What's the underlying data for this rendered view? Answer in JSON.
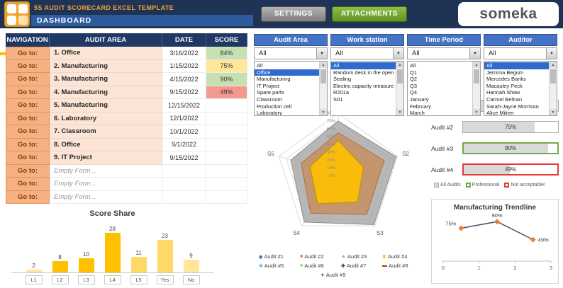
{
  "header": {
    "title": "5S AUDIT SCORECARD EXCEL TEMPLATE",
    "subtitle": "DASHBOARD",
    "buttons": {
      "settings": "SETTINGS",
      "attachments": "ATTACHMENTS"
    },
    "logo_text": "someka"
  },
  "nav_table": {
    "headers": [
      "NAVIGATION",
      "AUDIT AREA",
      "DATE",
      "SCORE"
    ],
    "goto_label": "Go to:",
    "rows": [
      {
        "area": "1. Office",
        "date": "3/16/2022",
        "score": "84%",
        "score_style": "green",
        "empty": false
      },
      {
        "area": "2. Manufacturing",
        "date": "1/15/2022",
        "score": "75%",
        "score_style": "yellow",
        "empty": false
      },
      {
        "area": "3. Manufacturing",
        "date": "4/15/2022",
        "score": "90%",
        "score_style": "green",
        "empty": false
      },
      {
        "area": "4. Manufacturing",
        "date": "9/15/2022",
        "score": "49%",
        "score_style": "red",
        "empty": false
      },
      {
        "area": "5. Manufacturing",
        "date": "12/15/2022",
        "score": "",
        "score_style": "",
        "empty": false
      },
      {
        "area": "6. Laboratory",
        "date": "12/1/2022",
        "score": "",
        "score_style": "",
        "empty": false
      },
      {
        "area": "7. Classroom",
        "date": "10/1/2022",
        "score": "",
        "score_style": "",
        "empty": false
      },
      {
        "area": "8. Office",
        "date": "9/1/2022",
        "score": "",
        "score_style": "",
        "empty": false
      },
      {
        "area": "9. IT Project",
        "date": "9/15/2022",
        "score": "",
        "score_style": "",
        "empty": false
      },
      {
        "area": "Empty Form...",
        "date": "",
        "score": "",
        "score_style": "",
        "empty": true
      },
      {
        "area": "Empty Form...",
        "date": "",
        "score": "",
        "score_style": "",
        "empty": true
      },
      {
        "area": "Empty Form...",
        "date": "",
        "score": "",
        "score_style": "",
        "empty": true
      }
    ]
  },
  "filters": [
    {
      "title": "Audit Area",
      "value": "All",
      "selected_index": 1,
      "items": [
        "All",
        "Office",
        "Manufacturing",
        "IT Project",
        "Spare parts",
        "Classroom",
        "Production cell",
        "Laboratory"
      ]
    },
    {
      "title": "Work station",
      "value": "All",
      "selected_index": 0,
      "items": [
        "All",
        "Random desk in the open space",
        "Sealing",
        "Electric capacity measure station",
        "R201a",
        "S01"
      ]
    },
    {
      "title": "Time Period",
      "value": "All",
      "selected_index": -1,
      "items": [
        "All",
        "Q1",
        "Q2",
        "Q3",
        "Q4",
        "January",
        "February",
        "March"
      ]
    },
    {
      "title": "Auditor",
      "value": "All",
      "selected_index": 0,
      "items": [
        "All",
        "Jemima Begum",
        "Mercedes Banks",
        "Macauley Peck",
        "Hannah Shaw",
        "Carmel Beltran",
        "Sarah-Jayne Morrison",
        "Alice Milner"
      ]
    }
  ],
  "chart_data": [
    {
      "type": "bar",
      "title": "Score Share",
      "categories": [
        "L1",
        "L2",
        "L3",
        "L4",
        "L5",
        "Yes",
        "No"
      ],
      "values": [
        2,
        8,
        10,
        28,
        11,
        23,
        9
      ],
      "bar_colors": [
        "#FFE699",
        "#FFC000",
        "#FFC000",
        "#FFC000",
        "#FFD966",
        "#FFD966",
        "#FFE699"
      ],
      "ylim": [
        0,
        30
      ]
    },
    {
      "type": "radar",
      "axes": [
        "S1",
        "S2",
        "S3",
        "S4",
        "S5"
      ],
      "ticks": [
        "0%",
        "10%",
        "20%",
        "30%",
        "40%",
        "50%",
        "60%",
        "70%",
        "80%"
      ],
      "max": 80,
      "series": [
        {
          "name": "outer-gray-band",
          "values": [
            70,
            78,
            78,
            74,
            64
          ],
          "fill": "rgba(165,165,165,0.80)",
          "stroke": "#8C8C8C"
        },
        {
          "name": "middle-tan-band",
          "values": [
            55,
            62,
            62,
            60,
            50
          ],
          "fill": "rgba(197,144,98,0.85)",
          "stroke": "#B07040"
        },
        {
          "name": "inner-gold-band",
          "values": [
            45,
            34,
            42,
            45,
            38
          ],
          "fill": "rgba(255,192,0,0.90)",
          "stroke": "#BF9000"
        }
      ],
      "legend": [
        "Audit #1",
        "Audit #2",
        "Audit #3",
        "Audit #4",
        "Audit #5",
        "Audit #6",
        "Audit #7",
        "Audit #8",
        "Audit #9"
      ],
      "legend_colors": [
        "#4472C4",
        "#ED7D31",
        "#A5A5A5",
        "#FFC000",
        "#5B9BD5",
        "#70AD47",
        "#264478",
        "#9E480E",
        "#636363"
      ],
      "legend_markers": [
        "◆",
        "■",
        "▲",
        "✖",
        "✳",
        "●",
        "✚",
        "▬",
        "✦"
      ]
    },
    {
      "type": "progress",
      "items": [
        {
          "label": "Audit #1",
          "value": 84,
          "display": "84%",
          "style": "default"
        },
        {
          "label": "Audit #2",
          "value": 75,
          "display": "75%",
          "style": "default"
        },
        {
          "label": "Audit #3",
          "value": 90,
          "display": "90%",
          "style": "professional"
        },
        {
          "label": "Audit #4",
          "value": 49,
          "display": "49%",
          "style": "not-acceptable"
        }
      ],
      "legend": [
        {
          "label": "All Audits",
          "style": "default"
        },
        {
          "label": "Professional",
          "style": "professional"
        },
        {
          "label": "Not acceptable!",
          "style": "not-acceptable"
        }
      ]
    },
    {
      "type": "line",
      "title": "Manufacturing Trendline",
      "x": [
        0.5,
        1.5,
        2.5
      ],
      "values": [
        75,
        90,
        49
      ],
      "point_labels": [
        "75%",
        "90%",
        "49%"
      ],
      "x_ticks": [
        "0",
        "1",
        "2",
        "3"
      ],
      "ylim": [
        0,
        100
      ]
    }
  ]
}
